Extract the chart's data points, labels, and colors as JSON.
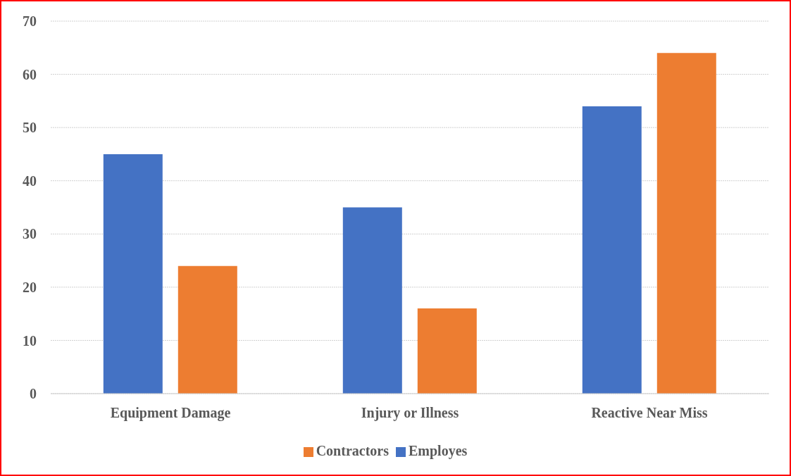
{
  "chart_data": {
    "type": "bar",
    "categories": [
      "Equipment Damage",
      "Injury or Illness",
      "Reactive Near Miss"
    ],
    "series": [
      {
        "name": "Employes",
        "color": "#4472c4",
        "values": [
          45,
          35,
          54
        ]
      },
      {
        "name": "Contractors",
        "color": "#ed7d31",
        "values": [
          24,
          16,
          64
        ]
      }
    ],
    "ylim": [
      0,
      70
    ],
    "yticks": [
      0,
      10,
      20,
      30,
      40,
      50,
      60,
      70
    ],
    "grid": "y",
    "legend": "bottom"
  }
}
